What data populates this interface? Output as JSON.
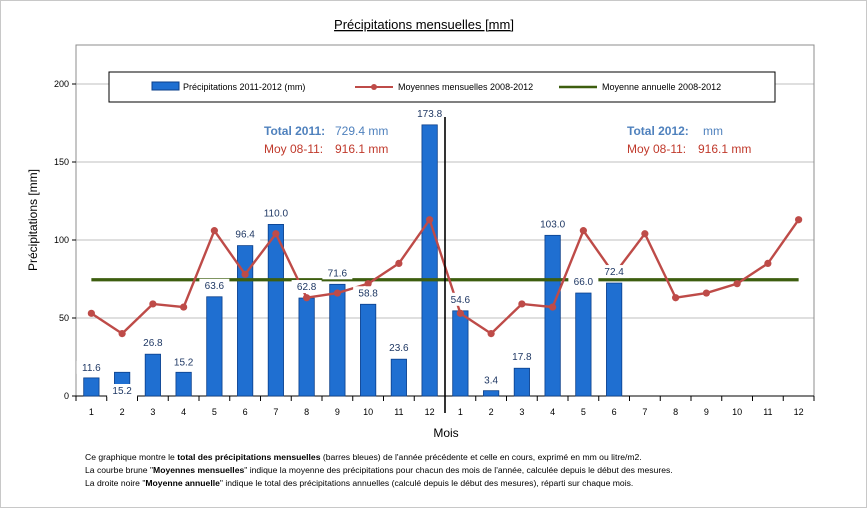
{
  "chart_data": {
    "type": "bar",
    "title": "Précipitations mensuelles [mm]",
    "xlabel": "Mois",
    "ylabel": "Précipitations [mm]",
    "ylim": [
      0,
      200
    ],
    "yticks": [
      "0",
      "50",
      "100",
      "150",
      "200"
    ],
    "grid": true,
    "legend_position": "top",
    "categories": [
      "1",
      "2",
      "3",
      "4",
      "5",
      "6",
      "7",
      "8",
      "9",
      "10",
      "11",
      "12",
      "1",
      "2",
      "3",
      "4",
      "5",
      "6",
      "7",
      "8",
      "9",
      "10",
      "11",
      "12"
    ],
    "series": [
      {
        "name": "Précipitations 2011-2012 (mm)",
        "kind": "bar",
        "color": "#1f6fd1",
        "values": [
          11.6,
          15.2,
          26.8,
          15.2,
          63.6,
          96.4,
          110.0,
          62.8,
          71.6,
          58.8,
          23.6,
          173.8,
          54.6,
          3.4,
          17.8,
          103.0,
          66.0,
          72.4,
          null,
          null,
          null,
          null,
          null,
          null
        ],
        "labels": [
          "11.6",
          "15.2",
          "26.8",
          "15.2",
          "63.6",
          "96.4",
          "110.0",
          "62.8",
          "71.6",
          "58.8",
          "23.6",
          "173.8",
          "54.6",
          "3.4",
          "17.8",
          "103.0",
          "66.0",
          "72.4",
          "",
          "",
          "",
          "",
          "",
          ""
        ]
      },
      {
        "name": "Moyennes mensuelles 2008-2012",
        "kind": "line",
        "color": "#be4b48",
        "values": [
          53,
          40,
          59,
          57,
          106,
          78,
          104,
          63,
          66,
          72,
          85,
          113,
          53,
          40,
          59,
          57,
          106,
          78,
          104,
          63,
          66,
          72,
          85,
          113
        ]
      },
      {
        "name": "Moyenne annuelle 2008-2012",
        "kind": "line",
        "color": "#3d5e0f",
        "values": [
          74.5,
          74.5,
          74.5,
          74.5,
          74.5,
          74.5,
          74.5,
          74.5,
          74.5,
          74.5,
          74.5,
          74.5,
          74.5,
          74.5,
          74.5,
          74.5,
          74.5,
          74.5,
          74.5,
          74.5,
          74.5,
          74.5,
          74.5,
          74.5
        ]
      }
    ],
    "annotations": {
      "total_2011_label": "Total 2011:",
      "total_2011_value": "729.4 mm",
      "moy_left_label": "Moy 08-11:",
      "moy_left_value": "916.1 mm",
      "total_2012_label": "Total 2012:",
      "total_2012_value": "mm",
      "moy_right_label": "Moy 08-11:",
      "moy_right_value": "916.1 mm"
    }
  },
  "colors": {
    "bar_fill": "#1f6fd1",
    "bar_stroke": "#0b3f8a",
    "avg_line": "#be4b48",
    "annual_line": "#3d5e0f",
    "blue_text": "#4f81bd",
    "red_text": "#c0392b",
    "grid": "#bfbfbf"
  },
  "notes": {
    "line1_a": "Ce graphique montre le ",
    "line1_b": "total des précipitations mensuelles",
    "line1_c": " (barres bleues) de l'année précédente et celle en cours, exprimé en mm ou litre/m2.",
    "line2_a": "La courbe brune \"",
    "line2_b": "Moyennes mensuelles",
    "line2_c": "\" indique la moyenne des précipitations pour chacun des mois de l'année, calculée depuis le début des mesures.",
    "line3_a": "La droite noire \"",
    "line3_b": "Moyenne annuelle",
    "line3_c": "\" indique le total des précipitations annuelles (calculé depuis le début des mesures), réparti sur chaque mois."
  }
}
